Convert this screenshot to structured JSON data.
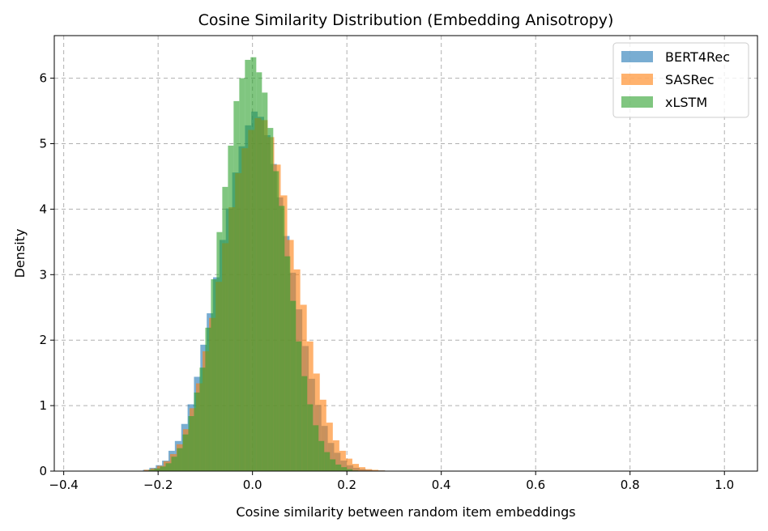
{
  "chart_data": {
    "type": "bar",
    "subtype": "histogram",
    "title": "Cosine Similarity Distribution (Embedding Anisotropy)",
    "xlabel": "Cosine similarity between random item embeddings",
    "ylabel": "Density",
    "xlim": [
      -0.42,
      1.07
    ],
    "ylim": [
      0,
      6.65
    ],
    "xticks": [
      -0.4,
      -0.2,
      0.0,
      0.2,
      0.4,
      0.6,
      0.8,
      1.0
    ],
    "xtick_labels": [
      "−0.4",
      "−0.2",
      "0.0",
      "0.2",
      "0.4",
      "0.6",
      "0.8",
      "1.0"
    ],
    "yticks": [
      0,
      1,
      2,
      3,
      4,
      5,
      6
    ],
    "ytick_labels": [
      "0",
      "1",
      "2",
      "3",
      "4",
      "5",
      "6"
    ],
    "grid": true,
    "legend_position": "top-right",
    "series": [
      {
        "name": "BERT4Rec",
        "color": "#1f77b4",
        "alpha": 0.6,
        "bin_width": 0.0135,
        "bin_starts": [
          -0.232,
          -0.2185,
          -0.205,
          -0.1915,
          -0.178,
          -0.1645,
          -0.151,
          -0.1375,
          -0.124,
          -0.1105,
          -0.097,
          -0.0835,
          -0.07,
          -0.0565,
          -0.043,
          -0.0295,
          -0.016,
          -0.0025,
          0.011,
          0.0245,
          0.038,
          0.0515,
          0.065,
          0.0785,
          0.092,
          0.1055,
          0.119,
          0.1325,
          0.146,
          0.1595,
          0.173,
          0.1865,
          0.2,
          0.2135,
          0.227,
          0.2405,
          0.254,
          0.2675,
          0.281
        ],
        "values": [
          0.02,
          0.05,
          0.09,
          0.16,
          0.31,
          0.46,
          0.72,
          1.02,
          1.44,
          1.93,
          2.41,
          2.96,
          3.53,
          4.01,
          4.56,
          4.96,
          5.28,
          5.49,
          5.41,
          5.13,
          4.69,
          4.18,
          3.59,
          3.03,
          2.47,
          1.91,
          1.41,
          1.01,
          0.69,
          0.43,
          0.28,
          0.16,
          0.09,
          0.05,
          0.03,
          0.02,
          0.01,
          0.01,
          0.0
        ]
      },
      {
        "name": "SASRec",
        "color": "#ff7f0e",
        "alpha": 0.6,
        "bin_width": 0.0138,
        "bin_starts": [
          -0.23,
          -0.2162,
          -0.2024,
          -0.1886,
          -0.1748,
          -0.161,
          -0.1472,
          -0.1334,
          -0.1196,
          -0.1058,
          -0.092,
          -0.0782,
          -0.0644,
          -0.0506,
          -0.0368,
          -0.023,
          -0.0092,
          0.0046,
          0.0184,
          0.0322,
          0.046,
          0.0598,
          0.0736,
          0.0874,
          0.1012,
          0.115,
          0.1288,
          0.1426,
          0.1564,
          0.1702,
          0.184,
          0.1978,
          0.2116,
          0.2254,
          0.2392,
          0.253,
          0.2668,
          0.2806,
          0.2944
        ],
        "values": [
          0.02,
          0.04,
          0.08,
          0.15,
          0.26,
          0.41,
          0.64,
          0.96,
          1.34,
          1.83,
          2.34,
          2.89,
          3.48,
          4.03,
          4.55,
          4.93,
          5.21,
          5.39,
          5.36,
          5.1,
          4.68,
          4.21,
          3.53,
          3.08,
          2.54,
          1.98,
          1.49,
          1.09,
          0.74,
          0.47,
          0.31,
          0.19,
          0.11,
          0.06,
          0.03,
          0.02,
          0.01,
          0.0,
          0.0
        ]
      },
      {
        "name": "xLSTM",
        "color": "#2ca02c",
        "alpha": 0.6,
        "bin_width": 0.012,
        "bin_starts": [
          -0.22,
          -0.208,
          -0.196,
          -0.184,
          -0.172,
          -0.16,
          -0.148,
          -0.136,
          -0.124,
          -0.112,
          -0.1,
          -0.088,
          -0.076,
          -0.064,
          -0.052,
          -0.04,
          -0.028,
          -0.016,
          -0.004,
          0.008,
          0.02,
          0.032,
          0.044,
          0.056,
          0.068,
          0.08,
          0.092,
          0.104,
          0.116,
          0.128,
          0.14,
          0.152,
          0.164,
          0.176,
          0.188,
          0.2,
          0.212
        ],
        "values": [
          0.02,
          0.04,
          0.07,
          0.12,
          0.22,
          0.35,
          0.56,
          0.84,
          1.2,
          1.58,
          2.19,
          2.93,
          3.65,
          4.34,
          4.97,
          5.65,
          6.0,
          6.28,
          6.32,
          6.09,
          5.78,
          5.24,
          4.58,
          4.05,
          3.28,
          2.6,
          1.98,
          1.45,
          1.02,
          0.7,
          0.46,
          0.29,
          0.18,
          0.1,
          0.06,
          0.03,
          0.01
        ]
      }
    ]
  }
}
